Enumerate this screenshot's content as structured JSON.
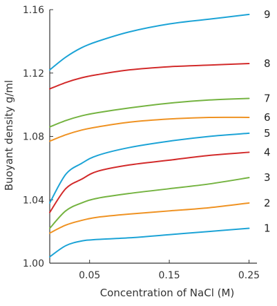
{
  "chart_data": {
    "type": "line",
    "xlabel": "Concentration of NaCl (M)",
    "ylabel": "Buoyant density g/ml",
    "xlim": [
      0,
      0.26
    ],
    "ylim": [
      1.0,
      1.16
    ],
    "x_ticks": [
      {
        "value": 0.05,
        "label": "0.05"
      },
      {
        "value": 0.15,
        "label": "0.15"
      },
      {
        "value": 0.25,
        "label": "0.25"
      }
    ],
    "y_ticks": [
      {
        "value": 1.0,
        "label": "1.00"
      },
      {
        "value": 1.04,
        "label": "1.04"
      },
      {
        "value": 1.08,
        "label": "1.08"
      },
      {
        "value": 1.12,
        "label": "1.12"
      },
      {
        "value": 1.16,
        "label": "1.16"
      }
    ],
    "grid": false,
    "legend": "none",
    "series": [
      {
        "name": "1",
        "color": "#1ba3d6",
        "x": [
          0,
          0.02,
          0.04,
          0.06,
          0.1,
          0.15,
          0.2,
          0.25
        ],
        "y": [
          1.004,
          1.011,
          1.014,
          1.015,
          1.016,
          1.018,
          1.02,
          1.022
        ]
      },
      {
        "name": "2",
        "color": "#ef9222",
        "x": [
          0,
          0.02,
          0.04,
          0.06,
          0.1,
          0.15,
          0.2,
          0.25
        ],
        "y": [
          1.019,
          1.024,
          1.027,
          1.029,
          1.031,
          1.033,
          1.035,
          1.038
        ]
      },
      {
        "name": "3",
        "color": "#74b340",
        "x": [
          0,
          0.02,
          0.04,
          0.06,
          0.1,
          0.15,
          0.2,
          0.25
        ],
        "y": [
          1.022,
          1.033,
          1.038,
          1.041,
          1.044,
          1.047,
          1.05,
          1.054
        ]
      },
      {
        "name": "4",
        "color": "#d22a2a",
        "x": [
          0,
          0.02,
          0.04,
          0.06,
          0.1,
          0.15,
          0.2,
          0.25
        ],
        "y": [
          1.032,
          1.047,
          1.053,
          1.058,
          1.062,
          1.065,
          1.068,
          1.07
        ]
      },
      {
        "name": "5",
        "color": "#1ba3d6",
        "x": [
          0,
          0.02,
          0.04,
          0.06,
          0.1,
          0.15,
          0.2,
          0.25
        ],
        "y": [
          1.038,
          1.056,
          1.063,
          1.068,
          1.073,
          1.077,
          1.08,
          1.082
        ]
      },
      {
        "name": "6",
        "color": "#ef9222",
        "x": [
          0,
          0.02,
          0.04,
          0.06,
          0.1,
          0.15,
          0.2,
          0.25
        ],
        "y": [
          1.077,
          1.081,
          1.084,
          1.086,
          1.089,
          1.091,
          1.092,
          1.092
        ]
      },
      {
        "name": "7",
        "color": "#74b340",
        "x": [
          0,
          0.02,
          0.04,
          0.06,
          0.1,
          0.15,
          0.2,
          0.25
        ],
        "y": [
          1.086,
          1.09,
          1.093,
          1.095,
          1.098,
          1.101,
          1.103,
          1.104
        ]
      },
      {
        "name": "8",
        "color": "#d22a2a",
        "x": [
          0,
          0.02,
          0.04,
          0.06,
          0.1,
          0.15,
          0.2,
          0.25
        ],
        "y": [
          1.11,
          1.114,
          1.117,
          1.119,
          1.122,
          1.124,
          1.125,
          1.126
        ]
      },
      {
        "name": "9",
        "color": "#1ba3d6",
        "x": [
          0,
          0.02,
          0.04,
          0.06,
          0.1,
          0.15,
          0.2,
          0.25
        ],
        "y": [
          1.122,
          1.13,
          1.136,
          1.14,
          1.146,
          1.151,
          1.154,
          1.157
        ]
      }
    ]
  }
}
